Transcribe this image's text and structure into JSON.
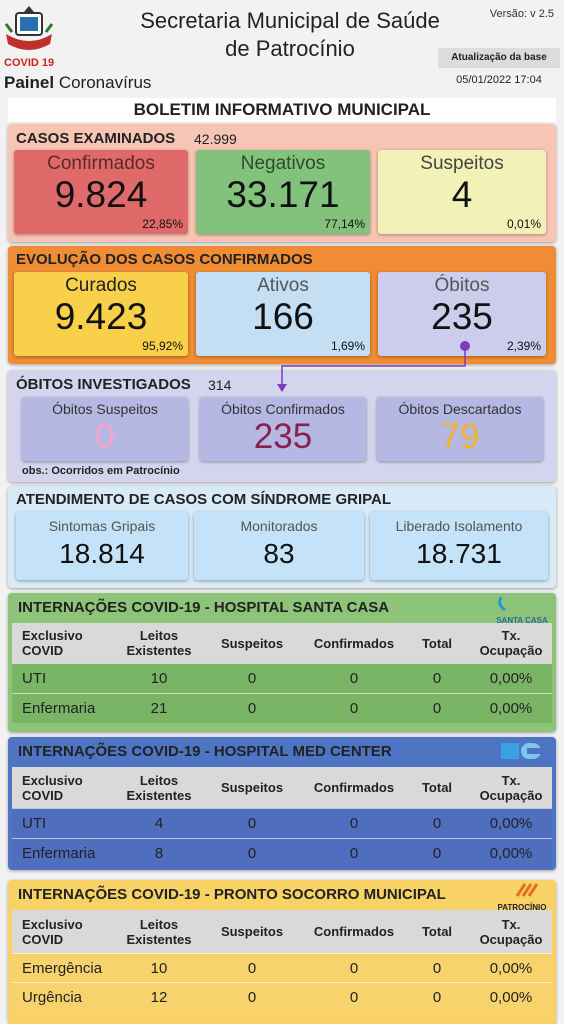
{
  "header": {
    "badge": "COVID 19",
    "title_line1": "Secretaria Municipal de Saúde",
    "title_line2": "de Patrocínio",
    "version": "Versão: v 2.5",
    "update_label": "Atualização da base",
    "update_date": "05/01/2022 17:04",
    "panel_bold": "Painel",
    "panel_rest": "Coronavírus"
  },
  "bulletin_title": "BOLETIM INFORMATIVO MUNICIPAL",
  "cases_examined": {
    "title": "CASOS EXAMINADOS",
    "total": "42.999",
    "cards": [
      {
        "label": "Confirmados",
        "value": "9.824",
        "percent": "22,85%"
      },
      {
        "label": "Negativos",
        "value": "33.171",
        "percent": "77,14%"
      },
      {
        "label": "Suspeitos",
        "value": "4",
        "percent": "0,01%"
      }
    ]
  },
  "evolution": {
    "title": "EVOLUÇÃO DOS CASOS CONFIRMADOS",
    "cards": [
      {
        "label": "Curados",
        "value": "9.423",
        "percent": "95,92%"
      },
      {
        "label": "Ativos",
        "value": "166",
        "percent": "1,69%"
      },
      {
        "label": "Óbitos",
        "value": "235",
        "percent": "2,39%"
      }
    ]
  },
  "deaths_investigated": {
    "title": "ÓBITOS INVESTIGADOS",
    "total": "314",
    "cards": [
      {
        "label": "Óbitos Suspeitos",
        "value": "0"
      },
      {
        "label": "Óbitos Confirmados",
        "value": "235"
      },
      {
        "label": "Óbitos Descartados",
        "value": "79"
      }
    ],
    "note": "obs.: Ocorridos em Patrocínio"
  },
  "flu_syndrome": {
    "title": "ATENDIMENTO DE CASOS COM SÍNDROME GRIPAL",
    "cards": [
      {
        "label": "Sintomas Gripais",
        "value": "18.814"
      },
      {
        "label": "Monitorados",
        "value": "83"
      },
      {
        "label": "Liberado Isolamento",
        "value": "18.731"
      }
    ]
  },
  "hospitals": [
    {
      "title": "INTERNAÇÕES COVID-19 - HOSPITAL SANTA CASA",
      "logo_text": "SANTA CASA",
      "columns": [
        "Exclusivo\nCOVID",
        "Leitos\nExistentes",
        "Suspeitos",
        "Confirmados",
        "Total",
        "Tx.\nOcupação"
      ],
      "rows": [
        [
          "UTI",
          "10",
          "0",
          "0",
          "0",
          "0,00%"
        ],
        [
          "Enfermaria",
          "21",
          "0",
          "0",
          "0",
          "0,00%"
        ]
      ]
    },
    {
      "title": "INTERNAÇÕES COVID-19 - HOSPITAL MED CENTER",
      "columns": [
        "Exclusivo\nCOVID",
        "Leitos\nExistentes",
        "Suspeitos",
        "Confirmados",
        "Total",
        "Tx.\nOcupação"
      ],
      "rows": [
        [
          "UTI",
          "4",
          "0",
          "0",
          "0",
          "0,00%"
        ],
        [
          "Enfermaria",
          "8",
          "0",
          "0",
          "0",
          "0,00%"
        ]
      ]
    },
    {
      "title": "INTERNAÇÕES COVID-19 - PRONTO SOCORRO MUNICIPAL",
      "logo_text": "PATROCÍNIO",
      "columns": [
        "Exclusivo\nCOVID",
        "Leitos\nExistentes",
        "Suspeitos",
        "Confirmados",
        "Total",
        "Tx.\nOcupação"
      ],
      "rows": [
        [
          "Emergência",
          "10",
          "0",
          "0",
          "0",
          "0,00%"
        ],
        [
          "Urgência",
          "12",
          "0",
          "0",
          "0",
          "0,00%"
        ]
      ]
    }
  ]
}
